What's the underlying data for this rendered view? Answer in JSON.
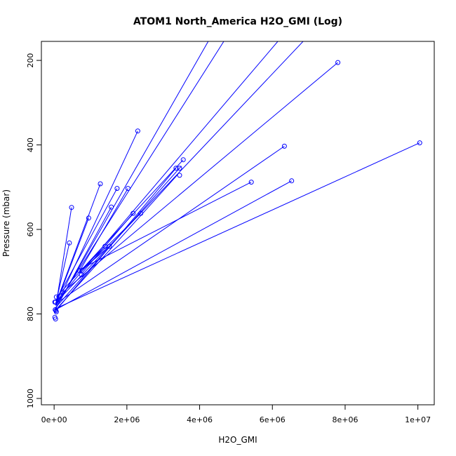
{
  "chart_data": {
    "type": "line",
    "title": "ATOM1 North_America H2O_GMI (Log)",
    "xlabel": "H2O_GMI",
    "ylabel": "Pressure (mbar)",
    "xlim": [
      -350000,
      10450000
    ],
    "ylim": [
      1015,
      155
    ],
    "y_inverted": true,
    "grid": false,
    "x_ticks": [
      {
        "value": 0,
        "label": "0e+00"
      },
      {
        "value": 2000000,
        "label": "2e+06"
      },
      {
        "value": 4000000,
        "label": "4e+06"
      },
      {
        "value": 6000000,
        "label": "6e+06"
      },
      {
        "value": 8000000,
        "label": "8e+06"
      },
      {
        "value": 10000000,
        "label": "1e+07"
      }
    ],
    "y_ticks": [
      {
        "value": 200,
        "label": "200"
      },
      {
        "value": 400,
        "label": "400"
      },
      {
        "value": 600,
        "label": "600"
      },
      {
        "value": 800,
        "label": "800"
      },
      {
        "value": 1000,
        "label": "1000"
      }
    ],
    "series_color": "#0000ff",
    "lines": [
      [
        [
          20000,
          790
        ],
        [
          5000000,
          40
        ]
      ],
      [
        [
          50000,
          780
        ],
        [
          4700000,
          150
        ]
      ],
      [
        [
          60000,
          770
        ],
        [
          6200000,
          150
        ]
      ],
      [
        [
          30000,
          775
        ],
        [
          6900000,
          150
        ]
      ],
      [
        [
          80000,
          760
        ],
        [
          7800000,
          205
        ]
      ],
      [
        [
          60000,
          760
        ],
        [
          3550000,
          435
        ]
      ],
      [
        [
          40000,
          785
        ],
        [
          3500000,
          450
        ]
      ],
      [
        [
          50000,
          790
        ],
        [
          3400000,
          470
        ]
      ],
      [
        [
          20000,
          795
        ],
        [
          3350000,
          455
        ]
      ],
      [
        [
          60000,
          775
        ],
        [
          6330000,
          403
        ]
      ],
      [
        [
          100000,
          785
        ],
        [
          10050000,
          395
        ]
      ],
      [
        [
          40000,
          790
        ],
        [
          6530000,
          485
        ]
      ],
      [
        [
          50000,
          780
        ],
        [
          480000,
          548
        ]
      ],
      [
        [
          50000,
          775
        ],
        [
          1270000,
          492
        ]
      ],
      [
        [
          60000,
          780
        ],
        [
          2300000,
          367
        ]
      ],
      [
        [
          40000,
          770
        ],
        [
          1730000,
          503
        ]
      ],
      [
        [
          30000,
          790
        ],
        [
          1570000,
          547
        ]
      ],
      [
        [
          40000,
          780
        ],
        [
          950000,
          573
        ]
      ],
      [
        [
          60000,
          770
        ],
        [
          420000,
          632
        ]
      ],
      [
        [
          690000,
          700
        ],
        [
          2030000,
          503
        ]
      ],
      [
        [
          750000,
          705
        ],
        [
          2170000,
          562
        ]
      ],
      [
        [
          800000,
          695
        ],
        [
          2380000,
          562
        ]
      ],
      [
        [
          700000,
          700
        ],
        [
          1400000,
          640
        ]
      ],
      [
        [
          700000,
          700
        ],
        [
          1520000,
          640
        ]
      ],
      [
        [
          700000,
          695
        ],
        [
          5420000,
          488
        ]
      ]
    ],
    "points": [
      [
        7800000,
        205
      ],
      [
        2300000,
        367
      ],
      [
        6330000,
        403
      ],
      [
        10050000,
        395
      ],
      [
        3550000,
        435
      ],
      [
        3350000,
        455
      ],
      [
        3450000,
        455
      ],
      [
        3450000,
        472
      ],
      [
        1270000,
        492
      ],
      [
        5420000,
        488
      ],
      [
        6530000,
        485
      ],
      [
        1730000,
        503
      ],
      [
        2030000,
        503
      ],
      [
        480000,
        548
      ],
      [
        1570000,
        547
      ],
      [
        950000,
        573
      ],
      [
        2170000,
        562
      ],
      [
        2380000,
        562
      ],
      [
        420000,
        632
      ],
      [
        1400000,
        640
      ],
      [
        1520000,
        640
      ],
      [
        690000,
        697
      ],
      [
        750000,
        707
      ],
      [
        60000,
        760
      ],
      [
        20000,
        772
      ],
      [
        40000,
        772
      ],
      [
        30000,
        790
      ],
      [
        50000,
        792
      ],
      [
        60000,
        795
      ],
      [
        20000,
        808
      ],
      [
        40000,
        812
      ]
    ]
  }
}
